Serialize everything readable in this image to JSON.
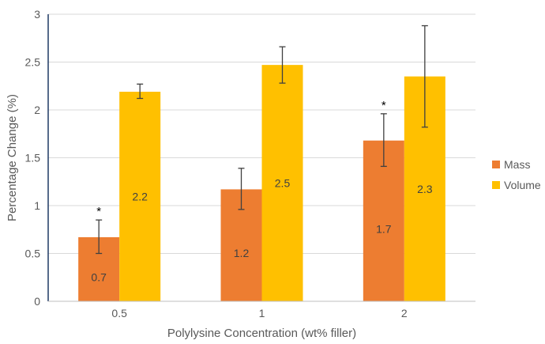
{
  "chart_data": {
    "type": "bar",
    "xlabel": "Polylysine Concentration (wt% filler)",
    "ylabel": "Percentage Change (%)",
    "categories": [
      "0.5",
      "1",
      "2"
    ],
    "ylim": [
      0,
      3
    ],
    "yticks": [
      0,
      0.5,
      1,
      1.5,
      2,
      2.5,
      3
    ],
    "ytick_labels": [
      "0",
      "0.5",
      "1",
      "1.5",
      "2",
      "2.5",
      "3"
    ],
    "grid": true,
    "legend_position": "right",
    "series": [
      {
        "name": "Mass",
        "color": "#ED7D31",
        "values": [
          0.67,
          1.17,
          1.68
        ],
        "error_low": [
          0.5,
          0.96,
          1.41
        ],
        "error_high": [
          0.85,
          1.39,
          1.96
        ],
        "data_labels": [
          "0.7",
          "1.2",
          "1.7"
        ],
        "annotations": [
          "*",
          "",
          "*"
        ]
      },
      {
        "name": "Volume",
        "color": "#FFC000",
        "values": [
          2.19,
          2.47,
          2.35
        ],
        "error_low": [
          2.12,
          2.28,
          1.82
        ],
        "error_high": [
          2.27,
          2.66,
          2.88
        ],
        "data_labels": [
          "2.2",
          "2.5",
          "2.3"
        ],
        "annotations": [
          "",
          "",
          ""
        ]
      }
    ]
  }
}
